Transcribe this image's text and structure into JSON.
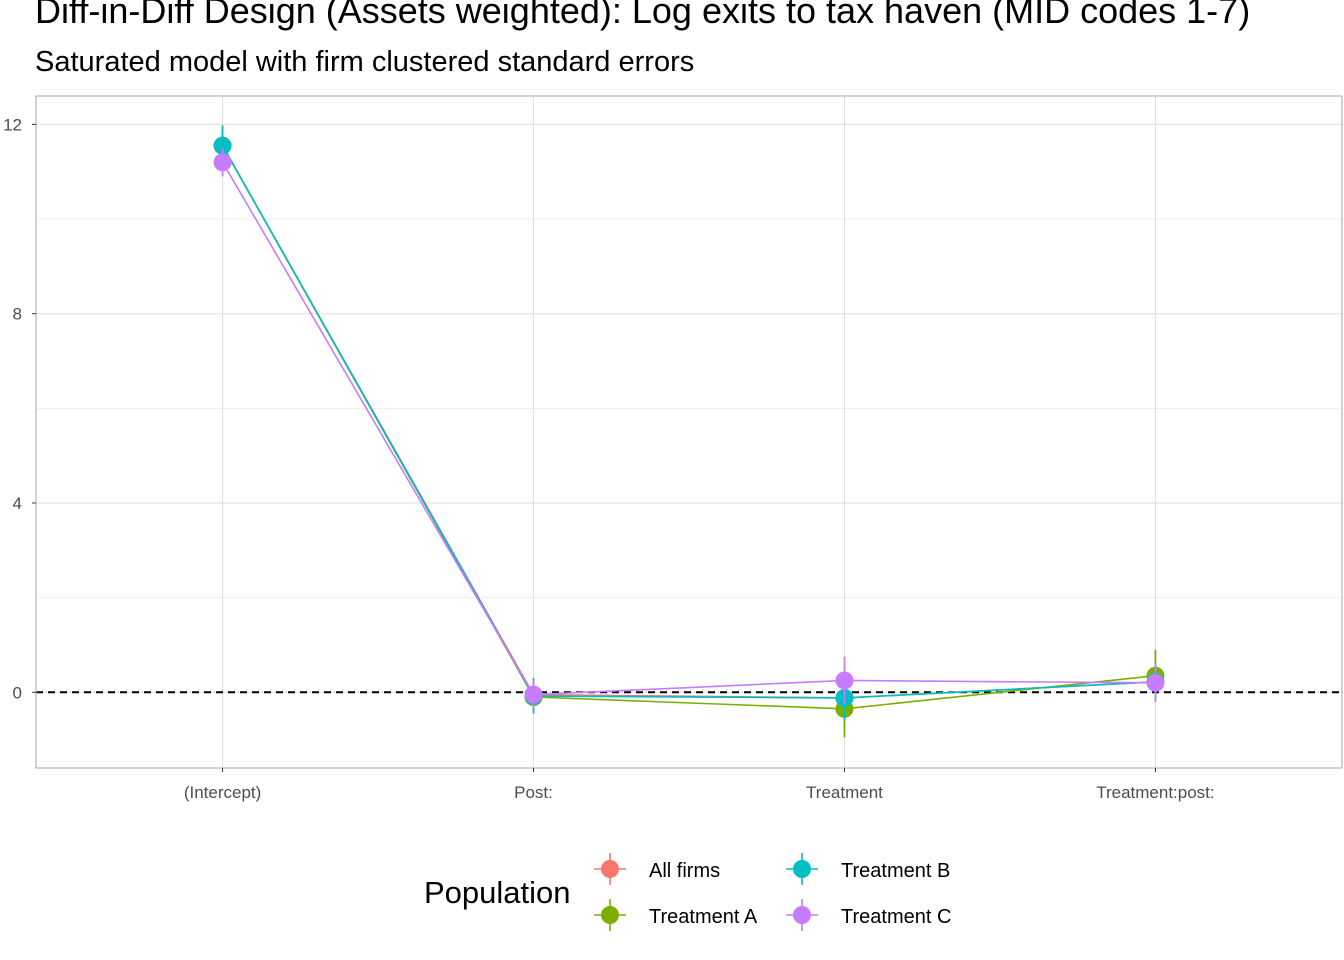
{
  "chart_data": {
    "type": "line",
    "title": "Diff-in-Diff Design (Assets weighted): Log exits to tax haven (MID codes 1-7)",
    "subtitle": "Saturated model with firm clustered standard errors",
    "xlabel": "",
    "ylabel": "",
    "categories": [
      "(Intercept)",
      "Post:",
      "Treatment",
      "Treatment:post:"
    ],
    "ylim": [
      -1.6,
      12.6
    ],
    "yticks": [
      0,
      4,
      8,
      12
    ],
    "grid": true,
    "reference_line": {
      "y": 0,
      "style": "dashed"
    },
    "legend": {
      "title": "Population",
      "position": "bottom"
    },
    "series": [
      {
        "name": "All firms",
        "color": "#F8766D",
        "values": [
          11.55,
          -0.05,
          -0.12,
          0.22
        ],
        "lower": [
          11.15,
          -0.35,
          -0.6,
          -0.15
        ],
        "upper": [
          11.95,
          0.25,
          0.35,
          0.6
        ]
      },
      {
        "name": "Treatment A",
        "color": "#7CAE00",
        "values": [
          11.55,
          -0.1,
          -0.35,
          0.35
        ],
        "lower": [
          11.15,
          -0.4,
          -0.95,
          -0.2
        ],
        "upper": [
          11.95,
          0.2,
          0.25,
          0.9
        ]
      },
      {
        "name": "Treatment B",
        "color": "#00BFC4",
        "values": [
          11.55,
          -0.08,
          -0.12,
          0.22
        ],
        "lower": [
          11.15,
          -0.45,
          -0.6,
          -0.15
        ],
        "upper": [
          11.98,
          0.3,
          0.35,
          0.6
        ]
      },
      {
        "name": "Treatment C",
        "color": "#C77CFF",
        "values": [
          11.2,
          -0.05,
          0.25,
          0.2
        ],
        "lower": [
          10.9,
          -0.35,
          -0.25,
          -0.2
        ],
        "upper": [
          11.5,
          0.25,
          0.75,
          0.6
        ]
      }
    ]
  }
}
